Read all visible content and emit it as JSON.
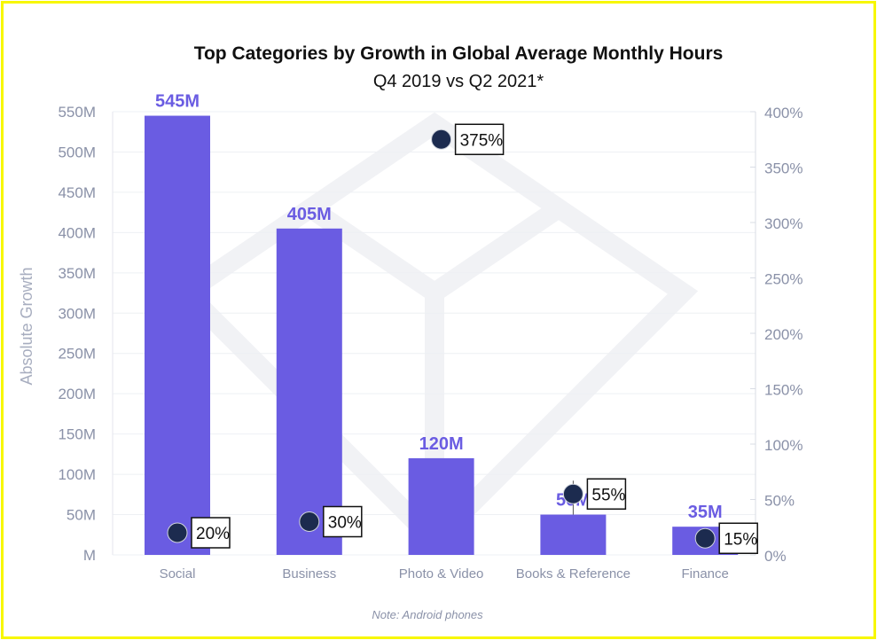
{
  "chart_data": {
    "type": "bar",
    "title": "Top Categories by Growth in Global Average Monthly Hours",
    "subtitle": "Q4 2019 vs Q2 2021*",
    "ylabel": "Absolute Growth",
    "ylim": [
      0,
      550
    ],
    "y2lim": [
      0,
      400
    ],
    "yticks": [
      "M",
      "50M",
      "100M",
      "150M",
      "200M",
      "250M",
      "300M",
      "350M",
      "400M",
      "450M",
      "500M",
      "550M"
    ],
    "y2ticks": [
      "0%",
      "50%",
      "100%",
      "150%",
      "200%",
      "250%",
      "300%",
      "350%",
      "400%"
    ],
    "grid": true,
    "categories": [
      "Social",
      "Business",
      "Photo & Video",
      "Books & Reference",
      "Finance"
    ],
    "values": [
      545,
      405,
      120,
      50,
      35
    ],
    "value_labels": [
      "545M",
      "405M",
      "120M",
      "50M",
      "35M"
    ],
    "growth_pct": [
      20,
      30,
      375,
      55,
      15
    ],
    "growth_labels": [
      "20%",
      "30%",
      "375%",
      "55%",
      "15%"
    ],
    "note": "Note: Android phones",
    "colors": {
      "bar": "#6a5ce2",
      "dot": "#1c2b4f",
      "axis_text": "#8a91a8",
      "border": "#f7f700"
    }
  }
}
